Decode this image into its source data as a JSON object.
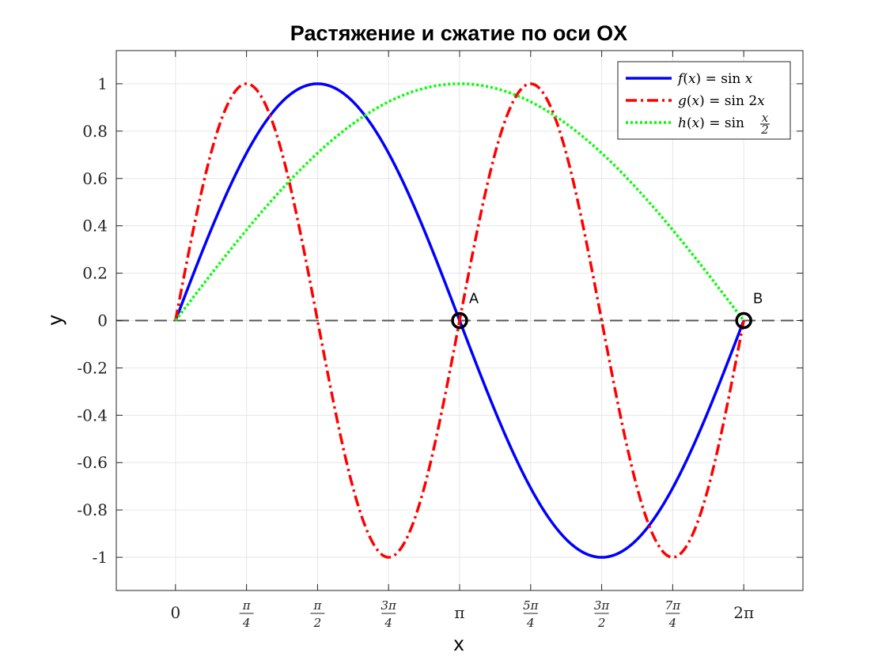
{
  "chart_data": {
    "type": "line",
    "title": "Растяжение и сжатие по оси OX",
    "xlabel": "x",
    "ylabel": "y",
    "xlim": [
      -0.6545,
      6.9377
    ],
    "ylim": [
      -1.14,
      1.14
    ],
    "grid": true,
    "legend_position": "top-right",
    "x_ticks": [
      {
        "value": 0,
        "num": "0",
        "den": ""
      },
      {
        "value": 0.7854,
        "num": "π",
        "den": "4"
      },
      {
        "value": 1.5708,
        "num": "π",
        "den": "2"
      },
      {
        "value": 2.3562,
        "num": "3π",
        "den": "4"
      },
      {
        "value": 3.1416,
        "num": "π",
        "den": ""
      },
      {
        "value": 3.927,
        "num": "5π",
        "den": "4"
      },
      {
        "value": 4.7124,
        "num": "3π",
        "den": "2"
      },
      {
        "value": 5.4978,
        "num": "7π",
        "den": "4"
      },
      {
        "value": 6.2832,
        "num": "2π",
        "den": ""
      }
    ],
    "y_ticks": [
      {
        "value": 1,
        "label": "1"
      },
      {
        "value": 0.8,
        "label": "0.8"
      },
      {
        "value": 0.6,
        "label": "0.6"
      },
      {
        "value": 0.4,
        "label": "0.4"
      },
      {
        "value": 0.2,
        "label": "0.2"
      },
      {
        "value": 0,
        "label": "0"
      },
      {
        "value": -0.2,
        "label": "-0.2"
      },
      {
        "value": -0.4,
        "label": "-0.4"
      },
      {
        "value": -0.6,
        "label": "-0.6"
      },
      {
        "value": -0.8,
        "label": "-0.8"
      },
      {
        "value": -1,
        "label": "-1"
      }
    ],
    "series": [
      {
        "name": "f(x) = sin x",
        "color": "#0000ff",
        "style": "solid",
        "x": [
          0,
          0.3927,
          0.7854,
          1.1781,
          1.5708,
          1.9635,
          2.3562,
          2.7489,
          3.1416,
          3.5343,
          3.927,
          4.3197,
          4.7124,
          5.1051,
          5.4978,
          5.8905,
          6.2832
        ],
        "y": [
          0,
          0.3827,
          0.7071,
          0.9239,
          1,
          0.9239,
          0.7071,
          0.3827,
          0,
          -0.3827,
          -0.7071,
          -0.9239,
          -1,
          -0.9239,
          -0.7071,
          -0.3827,
          0
        ]
      },
      {
        "name": "g(x) = sin 2x",
        "color": "#ff0000",
        "style": "dashdot",
        "x": [
          0,
          0.3927,
          0.7854,
          1.1781,
          1.5708,
          1.9635,
          2.3562,
          2.7489,
          3.1416,
          3.5343,
          3.927,
          4.3197,
          4.7124,
          5.1051,
          5.4978,
          5.8905,
          6.2832
        ],
        "y": [
          0,
          0.7071,
          1,
          0.7071,
          0,
          -0.7071,
          -1,
          -0.7071,
          0,
          0.7071,
          1,
          0.7071,
          0,
          -0.7071,
          -1,
          -0.7071,
          0
        ]
      },
      {
        "name": "h(x) = sin x/2",
        "color": "#00ff00",
        "style": "dotted",
        "x": [
          0,
          0.3927,
          0.7854,
          1.1781,
          1.5708,
          1.9635,
          2.3562,
          2.7489,
          3.1416,
          3.5343,
          3.927,
          4.3197,
          4.7124,
          5.1051,
          5.4978,
          5.8905,
          6.2832
        ],
        "y": [
          0,
          0.1951,
          0.3827,
          0.5556,
          0.7071,
          0.8315,
          0.9239,
          0.9808,
          1,
          0.9808,
          0.9239,
          0.8315,
          0.7071,
          0.5556,
          0.3827,
          0.1951,
          0
        ]
      }
    ],
    "baseline": {
      "y": 0,
      "color": "#555555",
      "style": "dashed"
    },
    "annotations": [
      {
        "label": "A",
        "x": 3.1416,
        "y": 0
      },
      {
        "label": "B",
        "x": 6.2832,
        "y": 0
      }
    ]
  }
}
